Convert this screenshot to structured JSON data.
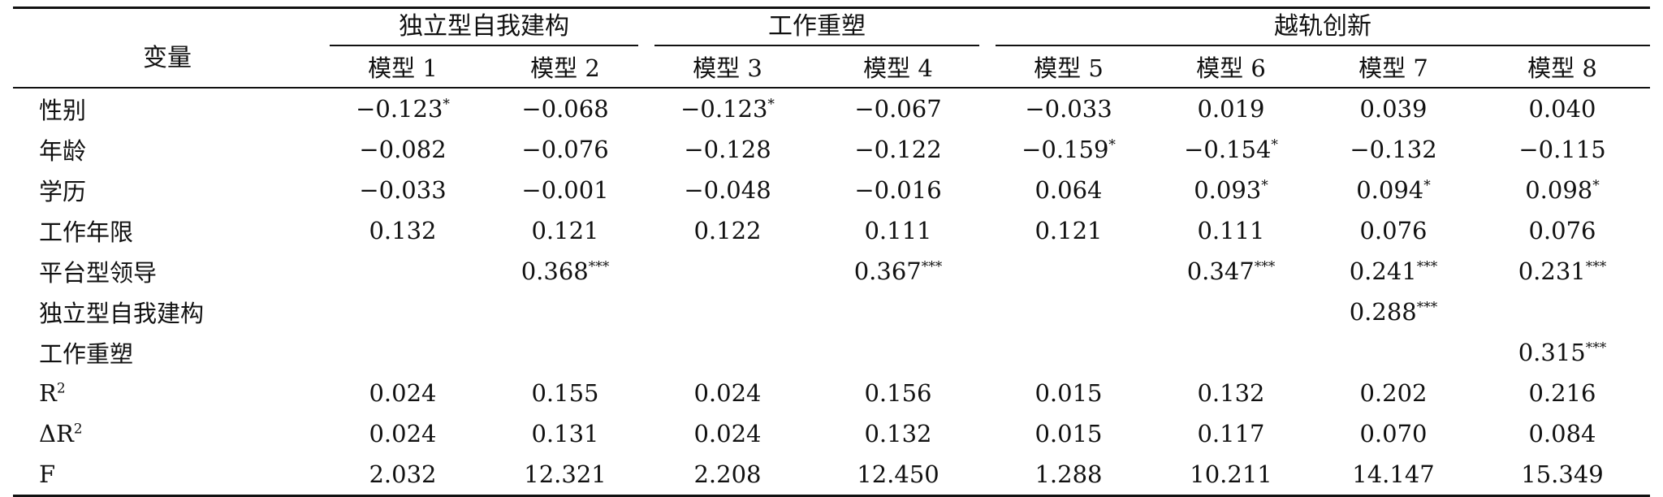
{
  "table": {
    "variable_header": "变量",
    "groups": [
      "独立型自我建构",
      "工作重塑",
      "越轨创新"
    ],
    "models": [
      "模型 1",
      "模型 2",
      "模型 3",
      "模型 4",
      "模型 5",
      "模型 6",
      "模型 7",
      "模型 8"
    ],
    "rows": [
      {
        "label": "性别",
        "cells": [
          [
            "−0.123",
            "*"
          ],
          [
            "−0.068",
            ""
          ],
          [
            "−0.123",
            "*"
          ],
          [
            "−0.067",
            ""
          ],
          [
            "−0.033",
            ""
          ],
          [
            "0.019",
            ""
          ],
          [
            "0.039",
            ""
          ],
          [
            "0.040",
            ""
          ]
        ]
      },
      {
        "label": "年龄",
        "cells": [
          [
            "−0.082",
            ""
          ],
          [
            "−0.076",
            ""
          ],
          [
            "−0.128",
            ""
          ],
          [
            "−0.122",
            ""
          ],
          [
            "−0.159",
            "*"
          ],
          [
            "−0.154",
            "*"
          ],
          [
            "−0.132",
            ""
          ],
          [
            "−0.115",
            ""
          ]
        ]
      },
      {
        "label": "学历",
        "cells": [
          [
            "−0.033",
            ""
          ],
          [
            "−0.001",
            ""
          ],
          [
            "−0.048",
            ""
          ],
          [
            "−0.016",
            ""
          ],
          [
            "0.064",
            ""
          ],
          [
            "0.093",
            "*"
          ],
          [
            "0.094",
            "*"
          ],
          [
            "0.098",
            "*"
          ]
        ]
      },
      {
        "label": "工作年限",
        "cells": [
          [
            "0.132",
            ""
          ],
          [
            "0.121",
            ""
          ],
          [
            "0.122",
            ""
          ],
          [
            "0.111",
            ""
          ],
          [
            "0.121",
            ""
          ],
          [
            "0.111",
            ""
          ],
          [
            "0.076",
            ""
          ],
          [
            "0.076",
            ""
          ]
        ]
      },
      {
        "label": "平台型领导",
        "cells": [
          [
            "",
            ""
          ],
          [
            "0.368",
            "***"
          ],
          [
            "",
            ""
          ],
          [
            "0.367",
            "***"
          ],
          [
            "",
            ""
          ],
          [
            "0.347",
            "***"
          ],
          [
            "0.241",
            "***"
          ],
          [
            "0.231",
            "***"
          ]
        ]
      },
      {
        "label": "独立型自我建构",
        "cells": [
          [
            "",
            ""
          ],
          [
            "",
            ""
          ],
          [
            "",
            ""
          ],
          [
            "",
            ""
          ],
          [
            "",
            ""
          ],
          [
            "",
            ""
          ],
          [
            "0.288",
            "***"
          ],
          [
            "",
            ""
          ]
        ]
      },
      {
        "label": "工作重塑",
        "cells": [
          [
            "",
            ""
          ],
          [
            "",
            ""
          ],
          [
            "",
            ""
          ],
          [
            "",
            ""
          ],
          [
            "",
            ""
          ],
          [
            "",
            ""
          ],
          [
            "",
            ""
          ],
          [
            "0.315",
            "***"
          ]
        ]
      },
      {
        "label": "R",
        "label_sup": "2",
        "cells": [
          [
            "0.024",
            ""
          ],
          [
            "0.155",
            ""
          ],
          [
            "0.024",
            ""
          ],
          [
            "0.156",
            ""
          ],
          [
            "0.015",
            ""
          ],
          [
            "0.132",
            ""
          ],
          [
            "0.202",
            ""
          ],
          [
            "0.216",
            ""
          ]
        ]
      },
      {
        "label": "ΔR",
        "label_sup": "2",
        "cells": [
          [
            "0.024",
            ""
          ],
          [
            "0.131",
            ""
          ],
          [
            "0.024",
            ""
          ],
          [
            "0.132",
            ""
          ],
          [
            "0.015",
            ""
          ],
          [
            "0.117",
            ""
          ],
          [
            "0.070",
            ""
          ],
          [
            "0.084",
            ""
          ]
        ]
      },
      {
        "label": "F",
        "cells": [
          [
            "2.032",
            ""
          ],
          [
            "12.321",
            ""
          ],
          [
            "2.208",
            ""
          ],
          [
            "12.450",
            ""
          ],
          [
            "1.288",
            ""
          ],
          [
            "10.211",
            ""
          ],
          [
            "14.147",
            ""
          ],
          [
            "15.349",
            ""
          ]
        ]
      }
    ]
  }
}
